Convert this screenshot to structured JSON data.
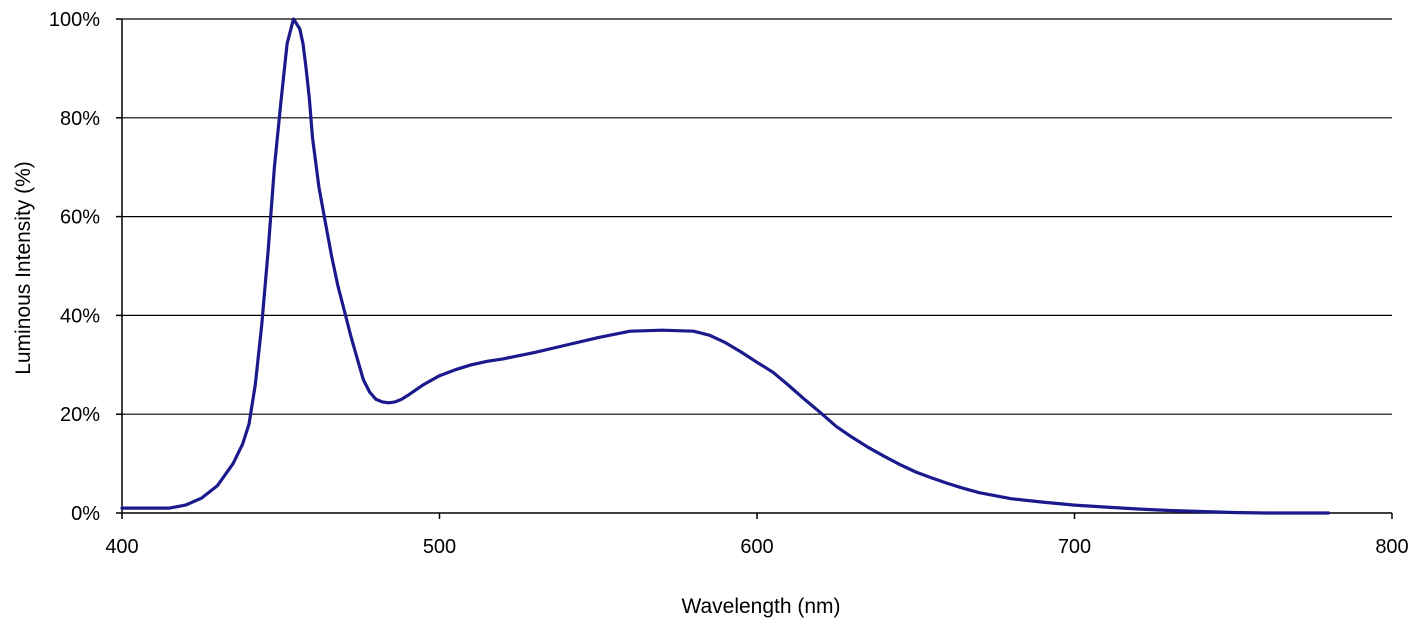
{
  "chart_data": {
    "type": "line",
    "title": "",
    "xlabel": "Wavelength (nm)",
    "ylabel": "Luminous Intensity (%)",
    "xlim": [
      400,
      800
    ],
    "ylim": [
      0,
      100
    ],
    "x_ticks": [
      400,
      500,
      600,
      700,
      800
    ],
    "x_tick_labels": [
      "400",
      "500",
      "600",
      "700",
      "800"
    ],
    "y_ticks": [
      0,
      20,
      40,
      60,
      80,
      100
    ],
    "y_tick_labels": [
      "0%",
      "20%",
      "40%",
      "60%",
      "80%",
      "100%"
    ],
    "grid": "horizontal",
    "legend": "none",
    "colors": {
      "line": "#1a1a8c",
      "grid": "#000000",
      "axis": "#000000"
    },
    "series": [
      {
        "x": [
          400,
          410,
          415,
          420,
          425,
          430,
          435,
          438,
          440,
          442,
          444,
          446,
          448,
          450,
          452,
          454,
          456,
          457,
          458,
          459,
          460,
          462,
          464,
          466,
          468,
          470,
          472,
          474,
          476,
          478,
          480,
          482,
          484,
          486,
          488,
          490,
          495,
          500,
          505,
          510,
          515,
          520,
          530,
          540,
          550,
          560,
          570,
          575,
          580,
          585,
          590,
          595,
          600,
          605,
          610,
          615,
          620,
          625,
          630,
          635,
          640,
          645,
          650,
          655,
          660,
          665,
          670,
          680,
          690,
          700,
          710,
          720,
          730,
          740,
          750,
          760,
          770,
          780
        ],
        "y": [
          1,
          1,
          1,
          1.6,
          3,
          5.5,
          10,
          14,
          18,
          26,
          38,
          53,
          70,
          83,
          95,
          100,
          98,
          95,
          90,
          84,
          76,
          66,
          59,
          52,
          46,
          41,
          36,
          31.5,
          27,
          24.5,
          23,
          22.5,
          22.3,
          22.5,
          23,
          23.8,
          26,
          27.8,
          29,
          30,
          30.7,
          31.2,
          32.5,
          34,
          35.5,
          36.8,
          37,
          36.9,
          36.8,
          36,
          34.5,
          32.6,
          30.5,
          28.5,
          25.8,
          23,
          20.3,
          17.5,
          15.3,
          13.3,
          11.5,
          9.8,
          8.3,
          7.1,
          6,
          5,
          4.1,
          2.9,
          2.2,
          1.6,
          1.2,
          0.8,
          0.5,
          0.3,
          0.1,
          0,
          0,
          0
        ]
      }
    ]
  }
}
